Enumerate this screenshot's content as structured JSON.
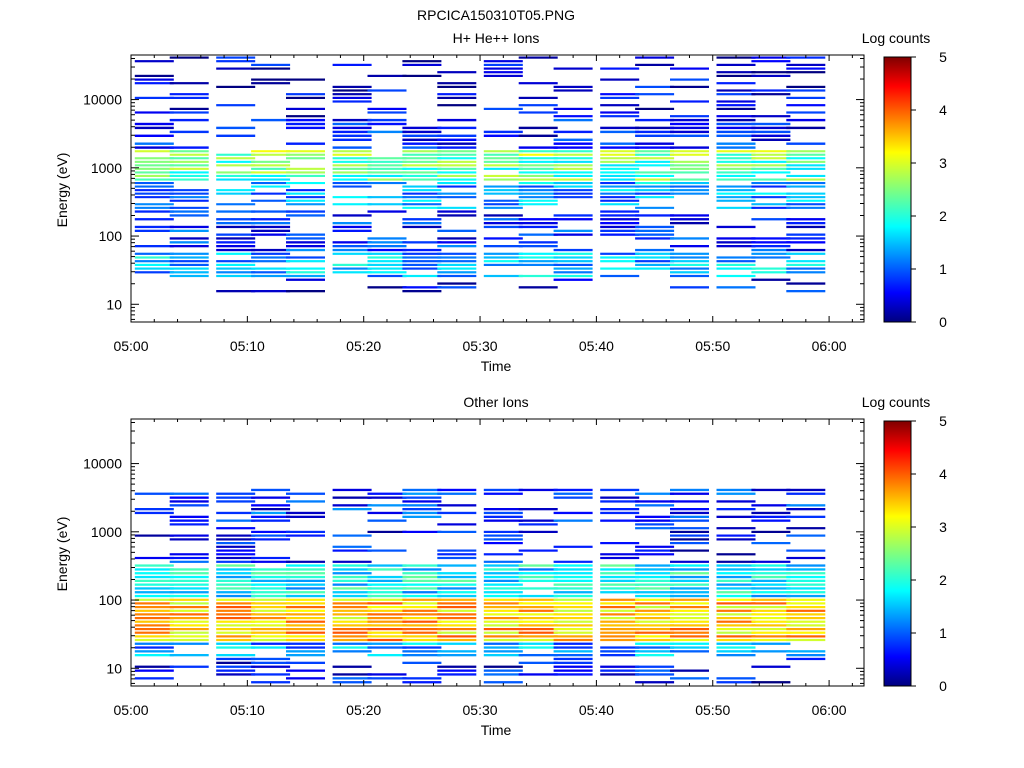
{
  "figure_title": "RPCICA150310T05.PNG",
  "colorbar": {
    "label": "Log counts",
    "range": [
      0,
      5
    ],
    "ticks": [
      "0",
      "1",
      "2",
      "3",
      "4",
      "5"
    ],
    "colormap": "jet"
  },
  "chart_data": [
    {
      "type": "heatmap",
      "title": "H+ He++ Ions",
      "xlabel": "Time",
      "ylabel": "Energy (eV)",
      "x_range": [
        "05:00",
        "06:03"
      ],
      "y_scale": "log",
      "y_range": [
        5.5,
        45000
      ],
      "x_ticks": [
        "05:00",
        "05:10",
        "05:20",
        "05:30",
        "05:40",
        "05:50",
        "06:00"
      ],
      "y_ticks": [
        "10",
        "100",
        "1000",
        "10000"
      ],
      "time_columns": [
        "05:02",
        "05:05",
        "05:09",
        "05:12",
        "05:15",
        "05:19",
        "05:22",
        "05:25",
        "05:28",
        "05:32",
        "05:35",
        "05:38",
        "05:42",
        "05:45",
        "05:48",
        "05:52",
        "05:55",
        "05:58"
      ],
      "value_unit": "log10 counts",
      "spectra": [
        {
          "e_min": 5500,
          "e_max": 45000,
          "value": 0.4,
          "density": 0.35
        },
        {
          "e_min": 1900,
          "e_max": 5500,
          "value": 0.7,
          "density": 0.5
        },
        {
          "e_min": 1500,
          "e_max": 1900,
          "value": 2.6,
          "density": 0.9
        },
        {
          "e_min": 650,
          "e_max": 1500,
          "value": 2.3,
          "density": 0.9
        },
        {
          "e_min": 250,
          "e_max": 650,
          "value": 1.4,
          "density": 0.7
        },
        {
          "e_min": 60,
          "e_max": 250,
          "value": 0.8,
          "density": 0.5
        },
        {
          "e_min": 25,
          "e_max": 60,
          "value": 1.5,
          "density": 0.8
        },
        {
          "e_min": 15,
          "e_max": 25,
          "value": 0.6,
          "density": 0.3
        }
      ]
    },
    {
      "type": "heatmap",
      "title": "Other Ions",
      "xlabel": "Time",
      "ylabel": "Energy (eV)",
      "x_range": [
        "05:00",
        "06:03"
      ],
      "y_scale": "log",
      "y_range": [
        5.5,
        45000
      ],
      "x_ticks": [
        "05:00",
        "05:10",
        "05:20",
        "05:30",
        "05:40",
        "05:50",
        "06:00"
      ],
      "y_ticks": [
        "10",
        "100",
        "1000",
        "10000"
      ],
      "time_columns": [
        "05:02",
        "05:05",
        "05:09",
        "05:12",
        "05:15",
        "05:19",
        "05:22",
        "05:25",
        "05:28",
        "05:32",
        "05:35",
        "05:38",
        "05:42",
        "05:45",
        "05:48",
        "05:52",
        "05:55",
        "05:58"
      ],
      "value_unit": "log10 counts",
      "spectra": [
        {
          "e_min": 1400,
          "e_max": 4500,
          "value": 0.8,
          "density": 0.55
        },
        {
          "e_min": 350,
          "e_max": 1400,
          "value": 0.6,
          "density": 0.45
        },
        {
          "e_min": 110,
          "e_max": 350,
          "value": 1.8,
          "density": 0.95
        },
        {
          "e_min": 25,
          "e_max": 110,
          "value": 3.4,
          "density": 1.0
        },
        {
          "e_min": 15,
          "e_max": 25,
          "value": 1.4,
          "density": 0.85
        },
        {
          "e_min": 6,
          "e_max": 15,
          "value": 0.6,
          "density": 0.4
        }
      ]
    }
  ]
}
